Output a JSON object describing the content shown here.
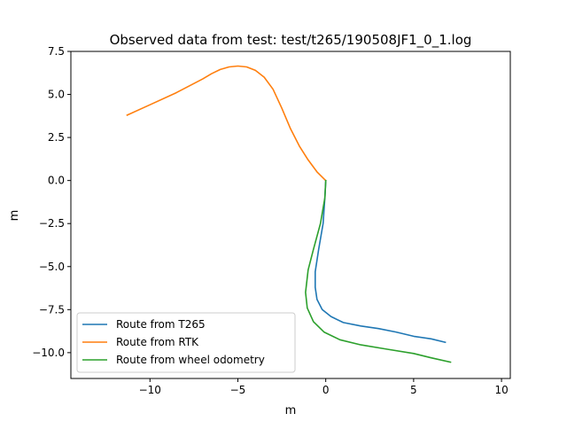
{
  "chart_data": {
    "type": "line",
    "title": "Observed data from test: test/t265/190508JF1_0_1.log",
    "xlabel": "m",
    "ylabel": "m",
    "xlim": [
      -14.5,
      10.5
    ],
    "ylim": [
      -11.5,
      7.5
    ],
    "xticks": [
      -10,
      -5,
      0,
      5,
      10
    ],
    "xtick_labels": [
      "−10",
      "−5",
      "0",
      "5",
      "10"
    ],
    "yticks": [
      7.5,
      5.0,
      2.5,
      0.0,
      -2.5,
      -5.0,
      -7.5,
      -10.0
    ],
    "ytick_labels": [
      "7.5",
      "5.0",
      "2.5",
      "0.0",
      "−2.5",
      "−5.0",
      "−7.5",
      "−10.0"
    ],
    "grid": false,
    "legend_position": "lower-left",
    "series": [
      {
        "name": "Route from T265",
        "color": "#1f77b4",
        "points": [
          [
            0.0,
            0.0
          ],
          [
            -0.05,
            -1.0
          ],
          [
            -0.15,
            -2.5
          ],
          [
            -0.4,
            -4.0
          ],
          [
            -0.6,
            -5.3
          ],
          [
            -0.6,
            -6.2
          ],
          [
            -0.5,
            -6.9
          ],
          [
            -0.2,
            -7.5
          ],
          [
            0.3,
            -7.9
          ],
          [
            1.0,
            -8.25
          ],
          [
            2.0,
            -8.45
          ],
          [
            3.0,
            -8.6
          ],
          [
            4.0,
            -8.8
          ],
          [
            5.0,
            -9.05
          ],
          [
            6.0,
            -9.2
          ],
          [
            6.8,
            -9.4
          ]
        ]
      },
      {
        "name": "Route from RTK",
        "color": "#ff7f0e",
        "points": [
          [
            -11.3,
            3.8
          ],
          [
            -10.0,
            4.4
          ],
          [
            -8.5,
            5.1
          ],
          [
            -7.0,
            5.9
          ],
          [
            -6.5,
            6.2
          ],
          [
            -6.0,
            6.45
          ],
          [
            -5.5,
            6.6
          ],
          [
            -5.0,
            6.65
          ],
          [
            -4.5,
            6.6
          ],
          [
            -4.0,
            6.4
          ],
          [
            -3.5,
            6.0
          ],
          [
            -3.0,
            5.3
          ],
          [
            -2.5,
            4.2
          ],
          [
            -2.0,
            3.0
          ],
          [
            -1.5,
            2.0
          ],
          [
            -1.0,
            1.2
          ],
          [
            -0.5,
            0.5
          ],
          [
            0.0,
            0.0
          ]
        ]
      },
      {
        "name": "Route from wheel odometry",
        "color": "#2ca02c",
        "points": [
          [
            0.0,
            0.0
          ],
          [
            -0.05,
            -1.0
          ],
          [
            -0.3,
            -2.5
          ],
          [
            -0.7,
            -4.0
          ],
          [
            -1.0,
            -5.2
          ],
          [
            -1.15,
            -6.5
          ],
          [
            -1.05,
            -7.4
          ],
          [
            -0.7,
            -8.2
          ],
          [
            -0.1,
            -8.8
          ],
          [
            0.8,
            -9.25
          ],
          [
            2.0,
            -9.55
          ],
          [
            3.5,
            -9.8
          ],
          [
            5.0,
            -10.05
          ],
          [
            6.0,
            -10.3
          ],
          [
            7.1,
            -10.55
          ]
        ]
      }
    ]
  }
}
